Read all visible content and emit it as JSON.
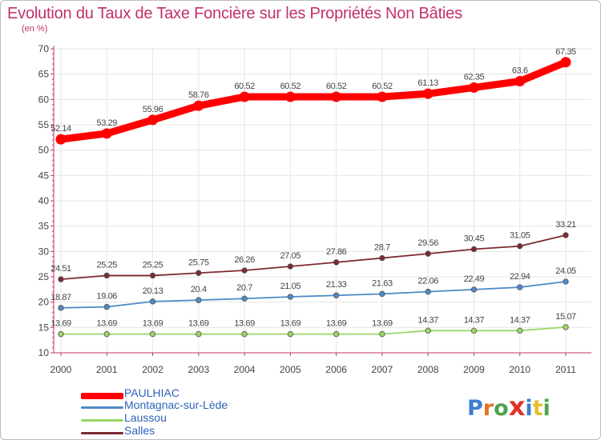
{
  "chart_data": {
    "type": "line",
    "title": "Evolution du Taux de Taxe Foncière sur les Propriétés Non Bâties",
    "subtitle": "(en %)",
    "x": [
      "2000",
      "2001",
      "2002",
      "2003",
      "2004",
      "2005",
      "2006",
      "2007",
      "2008",
      "2009",
      "2010",
      "2011"
    ],
    "ylim": [
      10,
      70
    ],
    "yticks": [
      10,
      15,
      20,
      25,
      30,
      35,
      40,
      45,
      50,
      55,
      60,
      65,
      70
    ],
    "grid": true,
    "legend": "bottom-left",
    "series": [
      {
        "name": "PAULHIAC",
        "color": "#ff0000",
        "values": [
          52.14,
          53.29,
          55.96,
          58.76,
          60.52,
          60.52,
          60.52,
          60.52,
          61.13,
          62.35,
          63.6,
          67.35
        ],
        "labels": [
          "52.14",
          "53.29",
          "55.96",
          "58.76",
          "60.52",
          "60.52",
          "60.52",
          "60.52",
          "61.13",
          "62.35",
          "63.6",
          "67.35"
        ]
      },
      {
        "name": "Montagnac-sur-Lède",
        "color": "#4f8ac8",
        "values": [
          18.87,
          19.06,
          20.13,
          20.4,
          20.7,
          21.05,
          21.33,
          21.63,
          22.06,
          22.49,
          22.94,
          24.05
        ],
        "labels": [
          "18.87",
          "19.06",
          "20.13",
          "20.4",
          "20.7",
          "21.05",
          "21.33",
          "21.63",
          "22.06",
          "22.49",
          "22.94",
          "24.05"
        ]
      },
      {
        "name": "Laussou",
        "color": "#9ad667",
        "values": [
          13.69,
          13.69,
          13.69,
          13.69,
          13.69,
          13.69,
          13.69,
          13.69,
          14.37,
          14.37,
          14.37,
          15.07
        ],
        "labels": [
          "13.69",
          "13.69",
          "13.69",
          "13.69",
          "13.69",
          "13.69",
          "13.69",
          "13.69",
          "14.37",
          "14.37",
          "14.37",
          "15.07"
        ]
      },
      {
        "name": "Salles",
        "color": "#7b2b31",
        "values": [
          24.51,
          25.25,
          25.25,
          25.75,
          26.26,
          27.05,
          27.86,
          28.7,
          29.56,
          30.45,
          31.05,
          33.21
        ],
        "labels": [
          "24.51",
          "25.25",
          "25.25",
          "25.75",
          "26.26",
          "27.05",
          "27.86",
          "28.7",
          "29.56",
          "30.45",
          "31.05",
          "33.21"
        ]
      }
    ]
  },
  "logo": {
    "text": "Proxiti",
    "colors": [
      "#3a7fd0",
      "#e5731f",
      "#4ea34d",
      "#e0322a",
      "#3a7fd0",
      "#e5c02a",
      "#4ea34d"
    ]
  }
}
